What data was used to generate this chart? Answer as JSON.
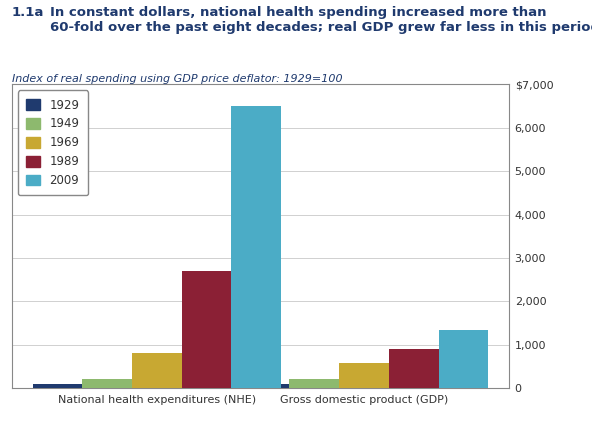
{
  "title_number": "1.1a",
  "title_text": "In constant dollars, national health spending increased more than\n60-fold over the past eight decades; real GDP grew far less in this period",
  "subtitle": "Index of real spending using GDP price deflator: 1929=100",
  "years": [
    "1929",
    "1949",
    "1969",
    "1989",
    "2009"
  ],
  "colors": [
    "#1f3a6e",
    "#8db96e",
    "#c8a832",
    "#8b2035",
    "#4bacc6"
  ],
  "nhe_values": [
    100,
    210,
    810,
    2700,
    6500
  ],
  "gdp_values": [
    100,
    210,
    590,
    900,
    1340
  ],
  "yticks": [
    0,
    1000,
    2000,
    3000,
    4000,
    5000,
    6000,
    7000
  ],
  "ytick_labels": [
    "0",
    "1,000",
    "2,000",
    "3,000",
    "4,000",
    "5,000",
    "6,000",
    "$7,000"
  ],
  "group_labels": [
    "National health expenditures (NHE)",
    "Gross domestic product (GDP)"
  ],
  "background_color": "#ffffff",
  "title_color": "#1f3a6e",
  "subtitle_color": "#1f3a6e",
  "axis_label_color": "#333333",
  "grid_color": "#d0d0d0"
}
